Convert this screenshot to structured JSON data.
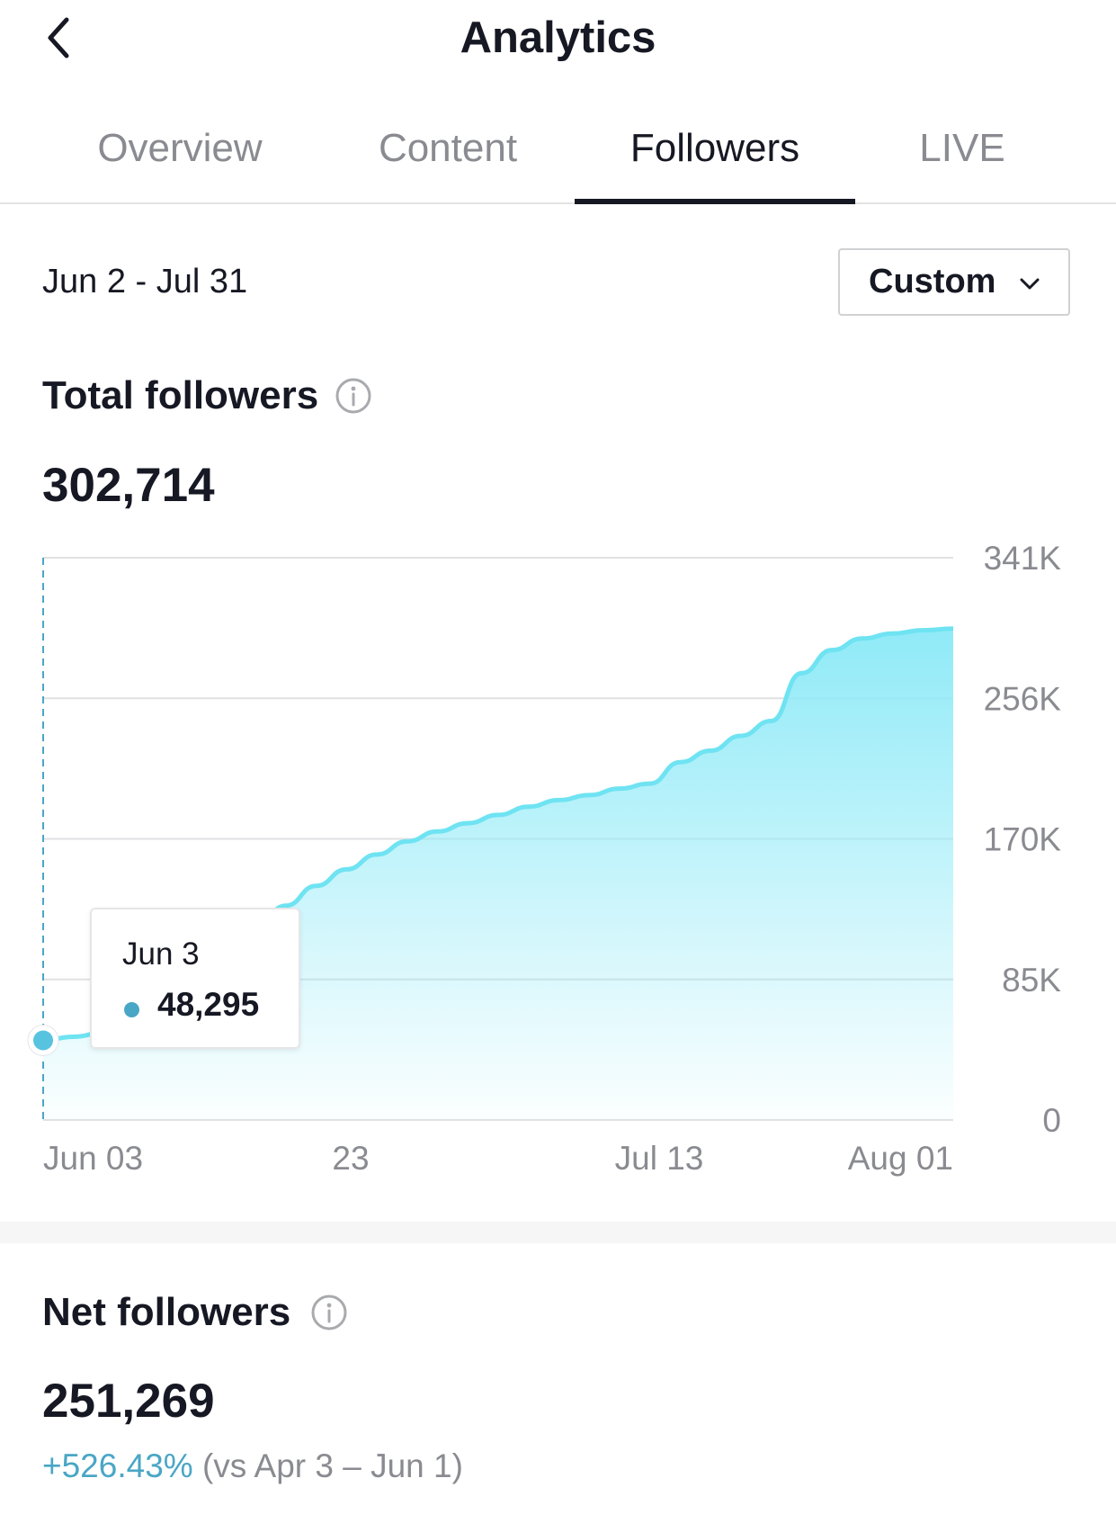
{
  "header": {
    "title": "Analytics",
    "back_icon": "chevron-left-icon"
  },
  "tabs": [
    {
      "label": "Overview",
      "active": false
    },
    {
      "label": "Content",
      "active": false
    },
    {
      "label": "Followers",
      "active": true
    },
    {
      "label": "LIVE",
      "active": false
    }
  ],
  "filter": {
    "date_range": "Jun 2 - Jul 31",
    "dropdown_value": "Custom",
    "dropdown_icon": "chevron-down-icon"
  },
  "total_followers": {
    "title": "Total followers",
    "info_icon": "info-icon",
    "value": "302,714",
    "tooltip": {
      "date": "Jun 3",
      "value": "48,295"
    }
  },
  "chart_data": {
    "type": "area",
    "title": "",
    "xlabel": "",
    "ylabel": "",
    "x_ticks": [
      "Jun 03",
      "23",
      "Jul 13",
      "Aug 01"
    ],
    "y_ticks": [
      "341K",
      "256K",
      "170K",
      "85K",
      "0"
    ],
    "ylim": [
      0,
      341000
    ],
    "grid": true,
    "y_axis_position": "right",
    "colors": {
      "line": "#6fe3f2",
      "fill": "#8ae9f7",
      "highlight": "#4aa6c5"
    },
    "series": [
      {
        "x": [
          "Jun 3",
          "Jun 5",
          "Jun 7",
          "Jun 9",
          "Jun 11",
          "Jun 13",
          "Jun 15",
          "Jun 17",
          "Jun 19",
          "Jun 21",
          "Jun 23",
          "Jun 25",
          "Jun 27",
          "Jun 29",
          "Jul 1",
          "Jul 3",
          "Jul 5",
          "Jul 7",
          "Jul 9",
          "Jul 11",
          "Jul 13",
          "Jul 15",
          "Jul 17",
          "Jul 19",
          "Jul 21",
          "Jul 23",
          "Jul 25",
          "Jul 27",
          "Jul 29",
          "Jul 31",
          "Aug 1"
        ],
        "values": [
          48295,
          50500,
          53000,
          58000,
          66000,
          82000,
          101000,
          117000,
          130000,
          142000,
          152000,
          161000,
          169000,
          175000,
          180000,
          185000,
          190000,
          194000,
          197000,
          201000,
          204000,
          217000,
          224000,
          233000,
          242000,
          271000,
          285000,
          292000,
          295000,
          297000,
          298000
        ]
      }
    ]
  },
  "net_followers": {
    "title": "Net followers",
    "info_icon": "info-icon",
    "value": "251,269",
    "change_pct": "+526.43%",
    "comparison": "(vs Apr 3 – Jun 1)"
  }
}
